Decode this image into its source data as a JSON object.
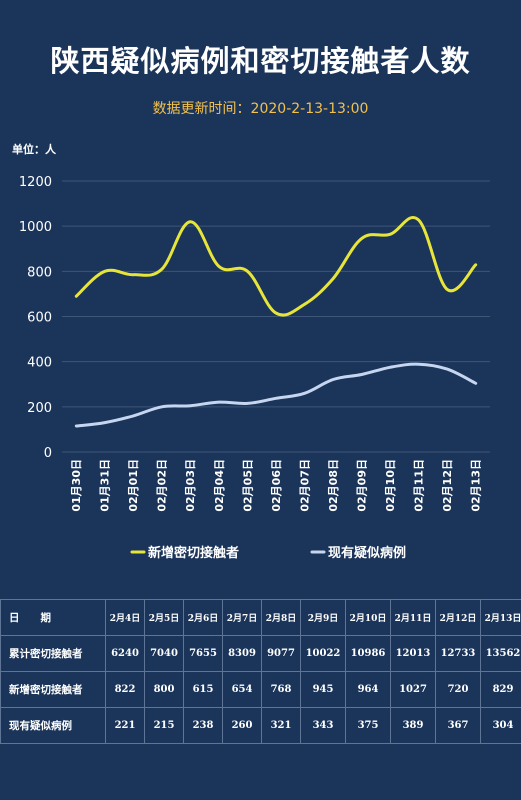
{
  "title": "陕西疑似病例和密切接触者人数",
  "subtitle": "数据更新时间：2020-2-13-13:00",
  "unit_label": "单位：人",
  "colors": {
    "background": "#1b3459",
    "new_contacts_line": "#e8e53a",
    "suspected_line": "#c6d6f0",
    "table_border": "#5f7595"
  },
  "chart_data": {
    "type": "line",
    "categories": [
      "01月30日",
      "01月31日",
      "02月01日",
      "02月02日",
      "02月03日",
      "02月04日",
      "02月05日",
      "02月06日",
      "02月07日",
      "02月08日",
      "02月09日",
      "02月10日",
      "02月11日",
      "02月12日",
      "02月13日"
    ],
    "series": [
      {
        "name": "新增密切接触者",
        "values": [
          690,
          800,
          785,
          810,
          1020,
          822,
          800,
          615,
          654,
          768,
          945,
          964,
          1027,
          720,
          829
        ]
      },
      {
        "name": "现有疑似病例",
        "values": [
          115,
          130,
          160,
          200,
          205,
          221,
          215,
          238,
          260,
          321,
          343,
          375,
          389,
          367,
          304
        ]
      }
    ],
    "ylim": [
      0,
      1200
    ],
    "yticks": [
      "0",
      "200",
      "400",
      "600",
      "800",
      "1000",
      "1200"
    ],
    "grid": true,
    "legend_position": "bottom"
  },
  "table": {
    "header_label": "日　　期",
    "dates": [
      "2月4日",
      "2月5日",
      "2月6日",
      "2月7日",
      "2月8日",
      "2月9日",
      "2月10日",
      "2月11日",
      "2月12日",
      "2月13日"
    ],
    "rows": [
      {
        "label": "累计密切接触者",
        "values": [
          "6240",
          "7040",
          "7655",
          "8309",
          "9077",
          "10022",
          "10986",
          "12013",
          "12733",
          "13562"
        ]
      },
      {
        "label": "新增密切接触者",
        "values": [
          "822",
          "800",
          "615",
          "654",
          "768",
          "945",
          "964",
          "1027",
          "720",
          "829"
        ]
      },
      {
        "label": "现有疑似病例",
        "values": [
          "221",
          "215",
          "238",
          "260",
          "321",
          "343",
          "375",
          "389",
          "367",
          "304"
        ]
      }
    ]
  }
}
